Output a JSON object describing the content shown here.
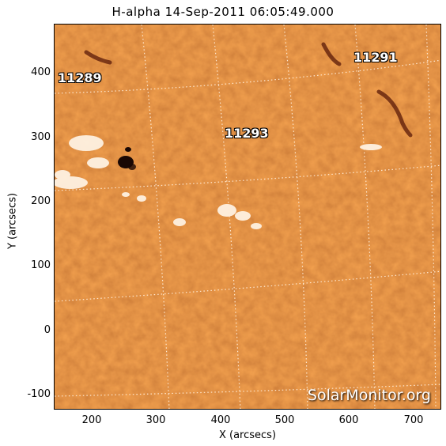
{
  "title": "H-alpha 14-Sep-2011 06:05:49.000",
  "axes": {
    "x_label": "X (arcsecs)",
    "y_label": "Y (arcsecs)",
    "x_ticks": [
      "200",
      "300",
      "400",
      "500",
      "600",
      "700"
    ],
    "y_ticks": [
      "400",
      "300",
      "200",
      "100",
      "0",
      "-100"
    ]
  },
  "regions": [
    {
      "name": "11289"
    },
    {
      "name": "11293"
    },
    {
      "name": "11291"
    }
  ],
  "watermark": "SolarMonitor.org",
  "colors": {
    "sun_base": "#d2521c",
    "plage": "#fff6e8",
    "sunspot": "#1a0804"
  }
}
